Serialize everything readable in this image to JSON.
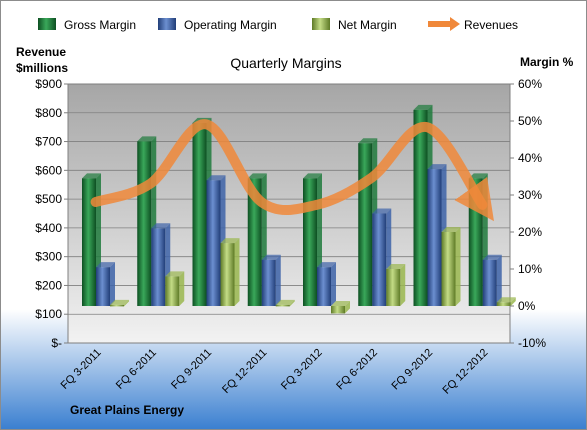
{
  "chart_data": {
    "type": "bar",
    "title": "Quarterly Margins",
    "company": "Great Plains Energy",
    "left_axis_label_line1": "Revenue",
    "left_axis_label_line2": "$millions",
    "right_axis_label": "Margin %",
    "categories": [
      "FQ 3-2011",
      "FQ 6-2011",
      "FQ 9-2011",
      "FQ 12-2011",
      "FQ 3-2012",
      "FQ 6-2012",
      "FQ 9-2012",
      "FQ 12-2012"
    ],
    "left_axis": {
      "min": 0,
      "max": 900,
      "step": 100,
      "tick_labels": [
        "$-",
        "$100",
        "$200",
        "$300",
        "$400",
        "$500",
        "$600",
        "$700",
        "$800",
        "$900"
      ]
    },
    "right_axis": {
      "min": -10,
      "max": 60,
      "step": 10,
      "tick_labels": [
        "-10%",
        "0%",
        "10%",
        "20%",
        "30%",
        "40%",
        "50%",
        "60%"
      ]
    },
    "series": [
      {
        "name": "Gross Margin",
        "axis": "right",
        "color": "#1e7a3c",
        "values": [
          34.5,
          44.5,
          49.5,
          34.5,
          34.5,
          44,
          53,
          34.5
        ]
      },
      {
        "name": "Operating Margin",
        "axis": "right",
        "color": "#3d63a8",
        "values": [
          10.5,
          21,
          34,
          12.5,
          10.5,
          25,
          37,
          12.5
        ]
      },
      {
        "name": "Net Margin",
        "axis": "right",
        "color": "#9ab74f",
        "values": [
          0.3,
          8,
          17,
          0.3,
          -2,
          10,
          20,
          1
        ]
      },
      {
        "name": "Revenues",
        "axis": "left",
        "type": "line",
        "color": "#f0883a",
        "values": [
          490,
          555,
          760,
          490,
          480,
          575,
          750,
          480
        ]
      }
    ],
    "grid": true,
    "legend_position": "top"
  }
}
